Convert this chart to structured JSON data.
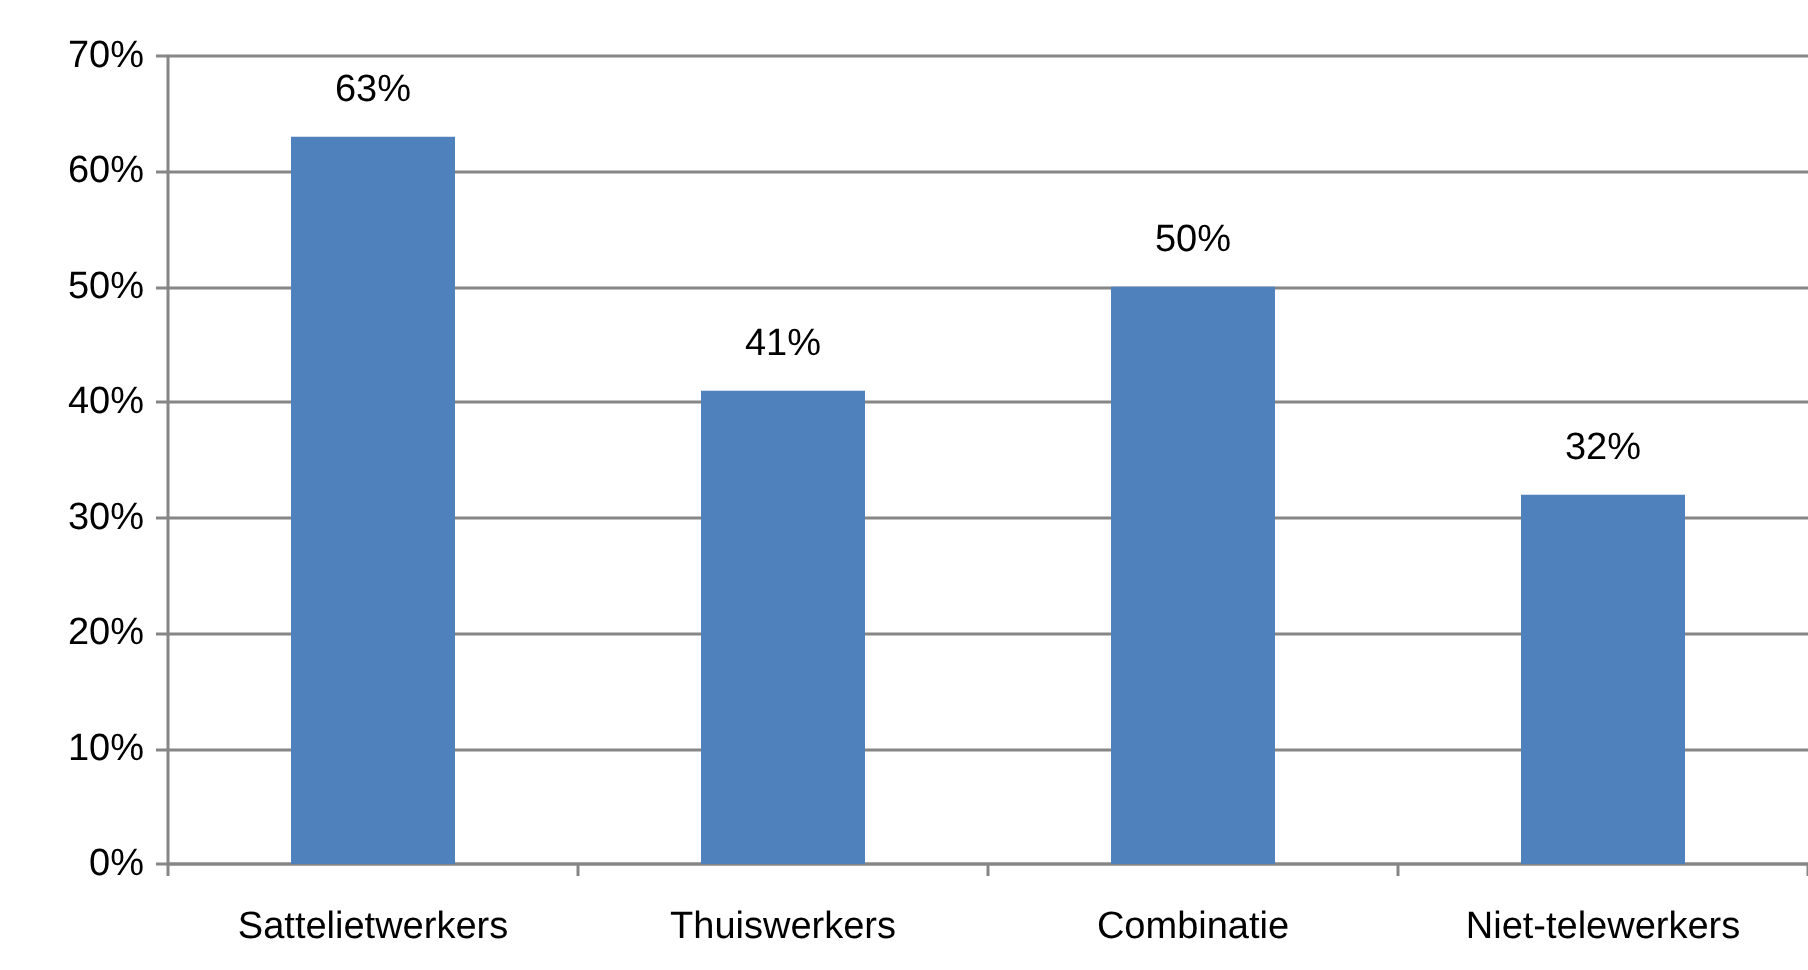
{
  "chart_data": {
    "type": "bar",
    "categories": [
      "Sattelietwerkers",
      "Thuiswerkers",
      "Combinatie",
      "Niet-telewerkers"
    ],
    "values": [
      63,
      41,
      50,
      32
    ],
    "value_labels": [
      "63%",
      "41%",
      "50%",
      "32%"
    ],
    "color": "#4f81bd",
    "ylim": [
      0,
      70
    ],
    "yticks": [
      {
        "value": 0,
        "label": "0%"
      },
      {
        "value": 10,
        "label": "10%"
      },
      {
        "value": 20,
        "label": "20%"
      },
      {
        "value": 30,
        "label": "30%"
      },
      {
        "value": 40,
        "label": "40%"
      },
      {
        "value": 50,
        "label": "50%"
      },
      {
        "value": 60,
        "label": "60%"
      },
      {
        "value": 70,
        "label": "70%"
      }
    ],
    "grid": "y"
  }
}
